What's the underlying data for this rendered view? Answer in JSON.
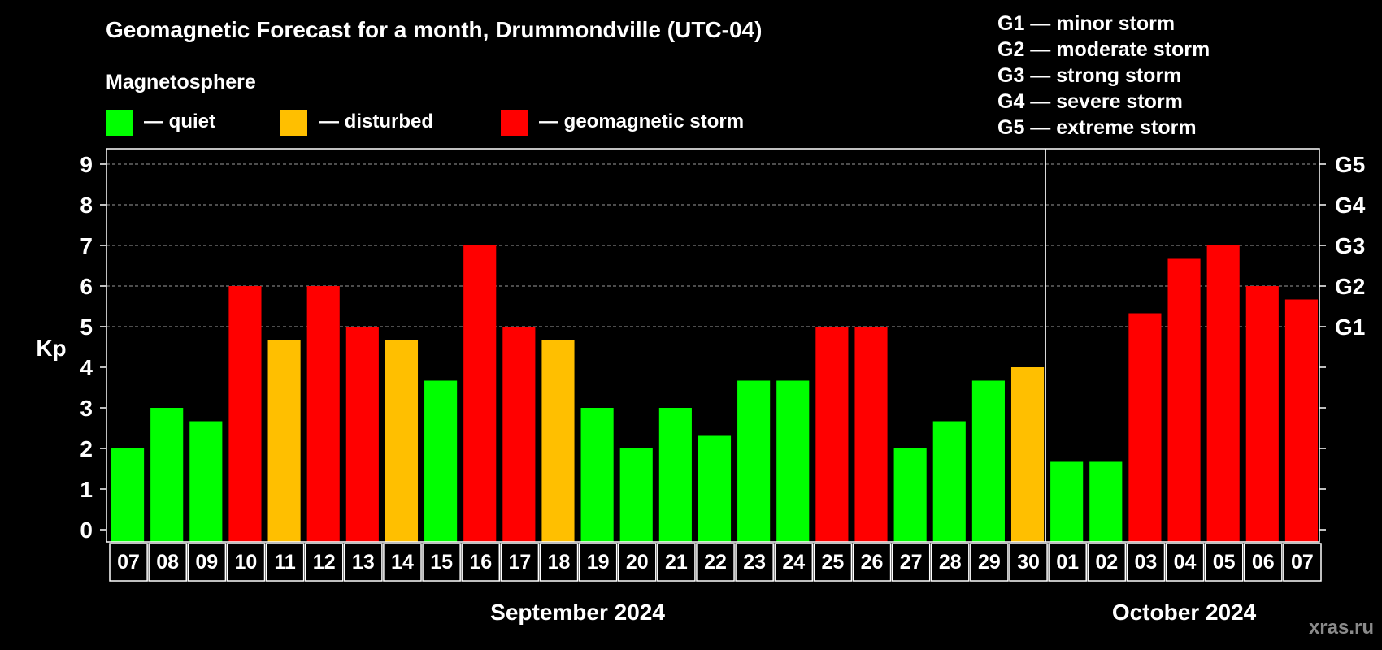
{
  "chart_data": {
    "type": "bar",
    "title": "Geomagnetic Forecast for a month, Drummondville (UTC-04)",
    "legend_title": "Magnetosphere",
    "legend": [
      {
        "label": "— quiet",
        "color": "#00ff00"
      },
      {
        "label": "— disturbed",
        "color": "#ffbf00"
      },
      {
        "label": "— geomagnetic storm",
        "color": "#ff0000"
      }
    ],
    "storm_levels": [
      {
        "code": "G1",
        "text": "G1 — minor storm",
        "kp": 5
      },
      {
        "code": "G2",
        "text": "G2 — moderate storm",
        "kp": 6
      },
      {
        "code": "G3",
        "text": "G3 — strong storm",
        "kp": 7
      },
      {
        "code": "G4",
        "text": "G4 — severe storm",
        "kp": 8
      },
      {
        "code": "G5",
        "text": "G5 — extreme storm",
        "kp": 9
      }
    ],
    "ylabel": "Kp",
    "ylim": [
      0,
      9
    ],
    "yticks": [
      0,
      1,
      2,
      3,
      4,
      5,
      6,
      7,
      8,
      9
    ],
    "categories": [
      "07",
      "08",
      "09",
      "10",
      "11",
      "12",
      "13",
      "14",
      "15",
      "16",
      "17",
      "18",
      "19",
      "20",
      "21",
      "22",
      "23",
      "24",
      "25",
      "26",
      "27",
      "28",
      "29",
      "30",
      "01",
      "02",
      "03",
      "04",
      "05",
      "06",
      "07"
    ],
    "values": [
      2,
      3,
      2.67,
      6,
      4.67,
      6,
      5,
      4.67,
      3.67,
      7,
      5,
      4.67,
      3,
      2,
      3,
      2.33,
      3.67,
      3.67,
      5,
      5,
      2,
      2.67,
      3.67,
      4,
      1.67,
      1.67,
      5.33,
      6.67,
      7,
      6,
      5.67
    ],
    "statuses": [
      "quiet",
      "quiet",
      "quiet",
      "storm",
      "disturbed",
      "storm",
      "storm",
      "disturbed",
      "quiet",
      "storm",
      "storm",
      "disturbed",
      "quiet",
      "quiet",
      "quiet",
      "quiet",
      "quiet",
      "quiet",
      "storm",
      "storm",
      "quiet",
      "quiet",
      "quiet",
      "disturbed",
      "quiet",
      "quiet",
      "storm",
      "storm",
      "storm",
      "storm",
      "storm"
    ],
    "status_colors": {
      "quiet": "#00ff00",
      "disturbed": "#ffbf00",
      "storm": "#ff0000"
    },
    "months": [
      {
        "label": "September 2024",
        "start_index": 0,
        "end_index": 23
      },
      {
        "label": "October 2024",
        "start_index": 24,
        "end_index": 30
      }
    ],
    "grid": "dashed at each G level",
    "watermark": "xras.ru"
  }
}
